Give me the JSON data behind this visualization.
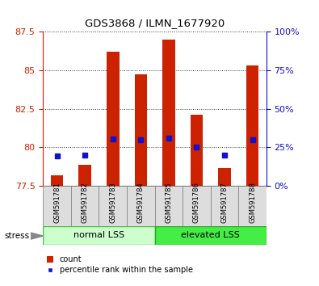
{
  "title": "GDS3868 / ILMN_1677920",
  "samples": [
    "GSM591781",
    "GSM591782",
    "GSM591783",
    "GSM591784",
    "GSM591785",
    "GSM591786",
    "GSM591787",
    "GSM591788"
  ],
  "count_values": [
    78.2,
    78.85,
    86.2,
    84.75,
    86.95,
    82.1,
    78.65,
    85.3
  ],
  "percentile_values": [
    79.45,
    79.5,
    80.55,
    80.5,
    80.6,
    80.0,
    79.5,
    80.5
  ],
  "ylim_left": [
    77.5,
    87.5
  ],
  "ylim_right": [
    0,
    100
  ],
  "yticks_left": [
    77.5,
    80.0,
    82.5,
    85.0,
    87.5
  ],
  "yticks_right": [
    0,
    25,
    50,
    75,
    100
  ],
  "ytick_labels_left": [
    "77.5",
    "80",
    "82.5",
    "85",
    "87.5"
  ],
  "ytick_labels_right": [
    "0%",
    "25%",
    "50%",
    "75%",
    "100%"
  ],
  "group1_label": "normal LSS",
  "group2_label": "elevated LSS",
  "stress_label": "stress",
  "legend_count": "count",
  "legend_percentile": "percentile rank within the sample",
  "bar_color": "#cc2200",
  "percentile_color": "#1111cc",
  "bar_bottom": 77.5,
  "group1_bg": "#ccffcc",
  "group2_bg": "#44ee44",
  "left_axis_color": "#cc2200",
  "right_axis_color": "#1111cc",
  "grid_color": "#333333",
  "sample_box_color": "#dddddd",
  "bar_width": 0.45
}
